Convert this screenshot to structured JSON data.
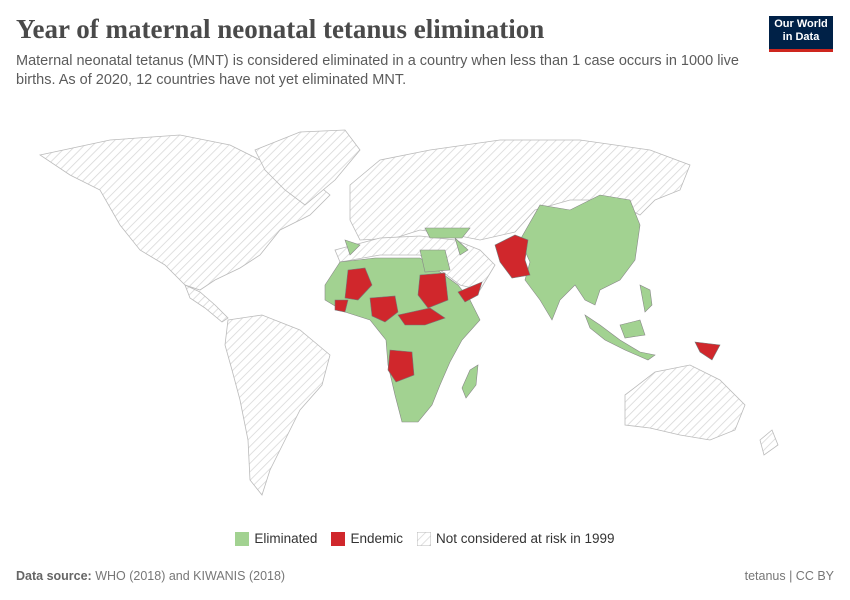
{
  "header": {
    "title": "Year of maternal neonatal tetanus elimination",
    "subtitle": "Maternal neonatal tetanus (MNT) is considered eliminated in a country when less than 1 case occurs in 1000 live births. As of 2020, 12 countries have not yet eliminated MNT.",
    "logo": [
      "Our World",
      "in Data"
    ]
  },
  "legend": [
    {
      "label": "Eliminated",
      "color": "#a2d291"
    },
    {
      "label": "Endemic",
      "color": "#d0272c"
    },
    {
      "label": "Not considered at risk in 1999"
    }
  ],
  "footer": {
    "source_label": "Data source:",
    "source": "WHO (2018) and KIWANIS (2018)",
    "license": "tetanus | CC BY"
  }
}
